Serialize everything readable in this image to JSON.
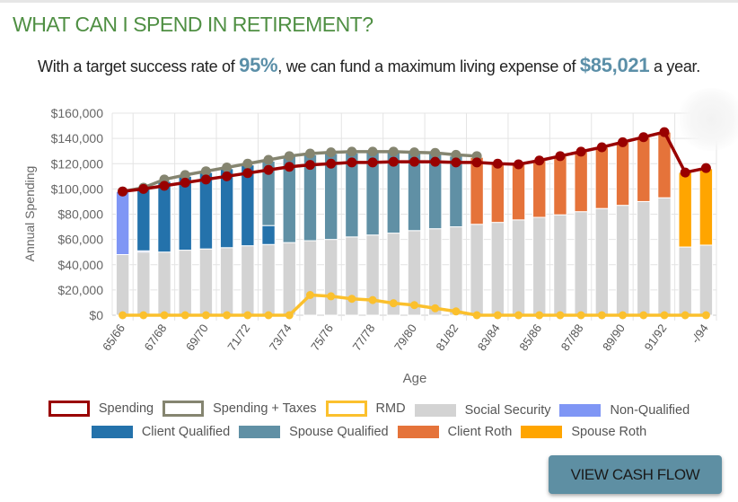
{
  "header": {
    "title": "WHAT CAN I SPEND IN RETIREMENT?",
    "summary_prefix": "With a target success rate of ",
    "success_rate": "95%",
    "summary_middle": ", we can fund a maximum living expense of ",
    "max_expense": "$85,021",
    "summary_suffix": " a year."
  },
  "button": {
    "view_cash_flow_label": "VIEW CASH FLOW"
  },
  "chart_data": {
    "type": "bar",
    "stacked": true,
    "xlabel": "Age",
    "ylabel": "Annual Spending",
    "ylim": [
      0,
      160000
    ],
    "yticks": [
      0,
      20000,
      40000,
      60000,
      80000,
      100000,
      120000,
      140000,
      160000
    ],
    "ytick_labels": [
      "$0",
      "$20,000",
      "$40,000",
      "$60,000",
      "$80,000",
      "$100,000",
      "$120,000",
      "$140,000",
      "$160,000"
    ],
    "grid": true,
    "legend_position": "bottom",
    "categories": [
      "65/66",
      "66/67",
      "67/68",
      "68/69",
      "69/70",
      "70/71",
      "71/72",
      "72/73",
      "73/74",
      "74/75",
      "75/76",
      "76/77",
      "77/78",
      "78/79",
      "79/80",
      "80/81",
      "81/82",
      "82/83",
      "83/84",
      "84/85",
      "85/86",
      "86/87",
      "87/88",
      "88/89",
      "89/90",
      "90/91",
      "91/92",
      "92/93",
      "-/94"
    ],
    "shown_tick_labels": [
      "65/66",
      "67/68",
      "69/70",
      "71/72",
      "73/74",
      "75/76",
      "77/78",
      "79/80",
      "81/82",
      "83/84",
      "85/86",
      "87/88",
      "89/90",
      "91/92",
      "-/94"
    ],
    "bar_series": [
      {
        "name": "Social Security",
        "color": "#d3d3d3",
        "values": [
          48000,
          50000,
          50000,
          51500,
          52500,
          53500,
          55000,
          56000,
          57500,
          59000,
          60000,
          62000,
          63500,
          65000,
          67000,
          68500,
          70000,
          72000,
          73500,
          75500,
          77500,
          79500,
          82000,
          84500,
          87000,
          90000,
          93000,
          54000,
          55500
        ]
      },
      {
        "name": "Non-Qualified",
        "color": "#7f96f5",
        "values": [
          50000,
          1000,
          0,
          0,
          0,
          0,
          0,
          0,
          0,
          0,
          0,
          0,
          0,
          0,
          0,
          0,
          0,
          0,
          0,
          0,
          0,
          0,
          0,
          0,
          0,
          0,
          0,
          0,
          0
        ]
      },
      {
        "name": "Client Qualified",
        "color": "#2472ab",
        "values": [
          0,
          50000,
          56000,
          58500,
          60500,
          62500,
          64000,
          15000,
          0,
          0,
          0,
          0,
          0,
          0,
          0,
          0,
          0,
          0,
          0,
          0,
          0,
          0,
          0,
          0,
          0,
          0,
          0,
          0,
          0
        ]
      },
      {
        "name": "Spouse Qualified",
        "color": "#6090a5",
        "values": [
          0,
          0,
          0,
          0,
          0,
          0,
          0,
          51000,
          68500,
          68000,
          68000,
          66500,
          65500,
          64000,
          61500,
          59500,
          56000,
          0,
          0,
          0,
          0,
          0,
          0,
          0,
          0,
          0,
          0,
          0,
          0
        ]
      },
      {
        "name": "Client Roth",
        "color": "#e5733a",
        "values": [
          0,
          0,
          0,
          0,
          0,
          0,
          0,
          0,
          0,
          0,
          0,
          0,
          0,
          0,
          0,
          0,
          0,
          53000,
          46500,
          44000,
          45000,
          46500,
          47500,
          48500,
          50000,
          51000,
          52000,
          0,
          0
        ]
      },
      {
        "name": "Spouse Roth",
        "color": "#ffa500",
        "values": [
          0,
          0,
          0,
          0,
          0,
          0,
          0,
          0,
          0,
          0,
          0,
          0,
          0,
          0,
          0,
          0,
          0,
          0,
          0,
          0,
          0,
          0,
          0,
          0,
          0,
          0,
          0,
          59000,
          60500
        ]
      }
    ],
    "line_series": [
      {
        "name": "Spending",
        "color": "#990000",
        "values": [
          98000,
          100000,
          102500,
          105000,
          107500,
          110000,
          112500,
          115000,
          117500,
          119000,
          120000,
          121000,
          121000,
          121500,
          121500,
          121500,
          121000,
          121000,
          120000,
          119500,
          122500,
          126000,
          129500,
          133000,
          137000,
          141000,
          145000,
          113000,
          116500
        ]
      },
      {
        "name": "Spending + Taxes",
        "color": "#858570",
        "values": [
          98000,
          101000,
          107500,
          111000,
          114000,
          117000,
          120000,
          123000,
          126000,
          128000,
          129000,
          129500,
          129500,
          129500,
          129000,
          128500,
          127000,
          126000,
          null,
          null,
          null,
          null,
          null,
          null,
          null,
          null,
          null,
          null,
          null
        ]
      },
      {
        "name": "RMD",
        "color": "#fbc02d",
        "values": [
          0,
          0,
          0,
          0,
          0,
          0,
          0,
          0,
          0,
          16000,
          15000,
          13000,
          12000,
          9500,
          8000,
          5500,
          3000,
          0,
          0,
          0,
          0,
          0,
          0,
          0,
          0,
          0,
          0,
          0,
          0
        ]
      }
    ],
    "legend": [
      {
        "name": "Spending",
        "style": "outline",
        "color": "#990000"
      },
      {
        "name": "Spending + Taxes",
        "style": "outline",
        "color": "#858570"
      },
      {
        "name": "RMD",
        "style": "outline",
        "color": "#fbc02d"
      },
      {
        "name": "Social Security",
        "style": "fill",
        "color": "#d3d3d3"
      },
      {
        "name": "Non-Qualified",
        "style": "fill",
        "color": "#7f96f5"
      },
      {
        "name": "Client Qualified",
        "style": "fill",
        "color": "#2472ab"
      },
      {
        "name": "Spouse Qualified",
        "style": "fill",
        "color": "#6090a5"
      },
      {
        "name": "Client Roth",
        "style": "fill",
        "color": "#e5733a"
      },
      {
        "name": "Spouse Roth",
        "style": "fill",
        "color": "#ffa500"
      }
    ]
  }
}
